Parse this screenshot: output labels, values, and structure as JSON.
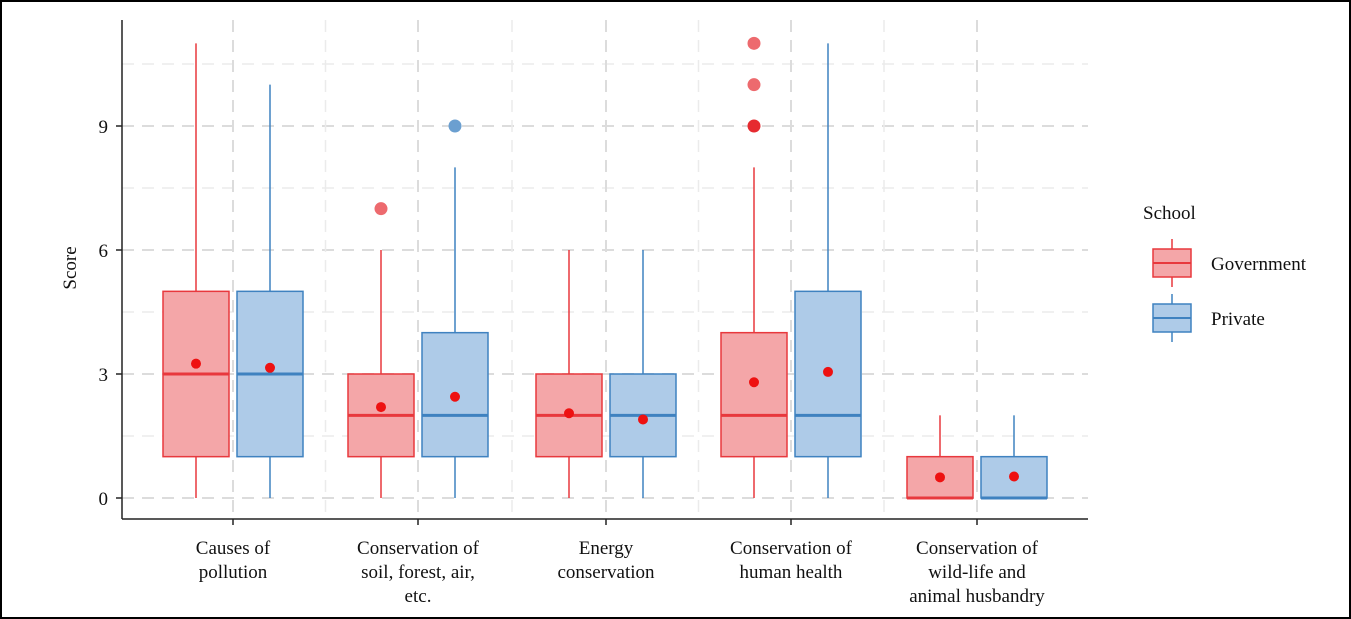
{
  "chart_data": {
    "type": "boxplot",
    "title": "",
    "xlabel": "",
    "ylabel": "Score",
    "ylim": [
      -0.6,
      11.5
    ],
    "yticks": [
      0,
      3,
      6,
      9
    ],
    "grid": true,
    "legend_position": "right",
    "legend_title": "School",
    "categories": [
      [
        "Causes of",
        "pollution"
      ],
      [
        "Conservation of",
        "soil, forest, air,",
        "etc."
      ],
      [
        "Energy",
        "conservation"
      ],
      [
        "Conservation of",
        "human health"
      ],
      [
        "Conservation of",
        "wild-life and",
        "animal husbandry"
      ]
    ],
    "series": [
      {
        "name": "Government",
        "fill": "#f4a6a8",
        "line": "#e8383d",
        "mean_color": "#ee1111",
        "boxes": [
          {
            "min": 0,
            "q1": 1,
            "median": 3,
            "q3": 5,
            "max": 11,
            "mean": 3.25,
            "outliers": []
          },
          {
            "min": 0,
            "q1": 1,
            "median": 2,
            "q3": 3,
            "max": 6,
            "mean": 2.2,
            "outliers": [
              7
            ]
          },
          {
            "min": 0,
            "q1": 1,
            "median": 2,
            "q3": 3,
            "max": 6,
            "mean": 2.05,
            "outliers": []
          },
          {
            "min": 0,
            "q1": 1,
            "median": 2,
            "q3": 4,
            "max": 8,
            "mean": 2.8,
            "outliers": [
              9,
              10,
              11
            ]
          },
          {
            "min": 0,
            "q1": 0,
            "median": 0,
            "q3": 1,
            "max": 2,
            "mean": 0.5,
            "outliers": []
          }
        ]
      },
      {
        "name": "Private",
        "fill": "#aecbe8",
        "line": "#3f82c0",
        "mean_color": "#ee1111",
        "boxes": [
          {
            "min": 0,
            "q1": 1,
            "median": 3,
            "q3": 5,
            "max": 10,
            "mean": 3.15,
            "outliers": []
          },
          {
            "min": 0,
            "q1": 1,
            "median": 2,
            "q3": 4,
            "max": 8,
            "mean": 2.45,
            "outliers": [
              9
            ]
          },
          {
            "min": 0,
            "q1": 1,
            "median": 2,
            "q3": 3,
            "max": 6,
            "mean": 1.9,
            "outliers": []
          },
          {
            "min": 0,
            "q1": 1,
            "median": 2,
            "q3": 5,
            "max": 11,
            "mean": 3.05,
            "outliers": []
          },
          {
            "min": 0,
            "q1": 0,
            "median": 0,
            "q3": 1,
            "max": 2,
            "mean": 0.52,
            "outliers": []
          }
        ]
      }
    ]
  }
}
